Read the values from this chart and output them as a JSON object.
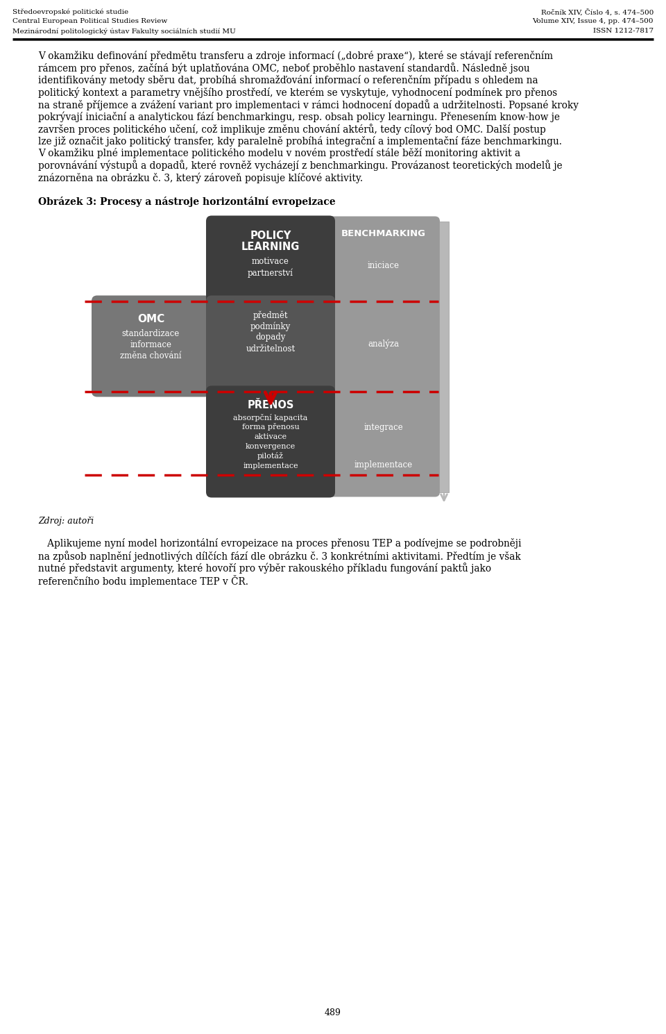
{
  "header_left": [
    "Středoevropské politické studie",
    "Central European Political Studies Review",
    "Mezinárodní politologický ústav Fakulty sociálních studií MU"
  ],
  "header_right": [
    "Ročník XIV, Číslo 4, s. 474–500",
    "Volume XIV, Issue 4, pp. 474–500",
    "ISSN 1212-7817"
  ],
  "para1_lines": [
    "V okamžiku definování předmětu transferu a zdroje informací („dobré praxe“), které se stávají referenčním",
    "rámcem pro přenos, začíná být uplatňována OMC, neboť proběhlo nastavení standardů. Následně jsou",
    "identifikovány metody sběru dat, probíhá shromažďování informací o referenčním případu s ohledem na",
    "politický kontext a parametry vnějšího prostředí, ve kterém se vyskytuje, vyhodnocení podmínek pro přenos",
    "na straně příjemce a zvážení variant pro implementaci v rámci hodnocení dopadů a udržitelnosti. Popsané kroky",
    "pokrývají iniciační a analytickou fází benchmarkingu, resp. obsah policy learningu. Přenesením know-how je",
    "završen proces politického učení, což implikuje změnu chování aktérů, tedy cílový bod OMC. Další postup",
    "lze již označit jako politický transfer, kdy paralelně probíhá integrační a implementační fáze benchmarkingu.",
    "V okamžiku plné implementace politického modelu v novém prostředí stále běží monitoring aktivit a",
    "porovnávání výstupů a dopadů, které rovněž vycházejí z benchmarkingu. Provázanost teoretických modelů je",
    "znázorněna na obrázku č. 3, který zároveň popisuje klíčové aktivity."
  ],
  "figure_caption": "Obrázek 3: Procesy a nástroje horizontální evropeizace",
  "bottom_para_lines": [
    "   Aplikujeme nyní model horizontální evropeizace na proces přenosu TEP a podívejme se podrobněji",
    "na způsob naplnění jednotlivých dílčích fází dle obrázku č. 3 konkrétními aktivitami. Předtím je však",
    "nutné představit argumenty, které hovoří pro výběr rakouského příkladu fungování paktů jako",
    "referenčního bodu implementace TEP v ČR."
  ],
  "page_number": "489",
  "color_dark": "#3d3d3d",
  "color_mid": "#555555",
  "color_light_gray": "#888888",
  "color_bench": "#999999",
  "color_omc": "#777777",
  "color_scroll": "#b8b8b8",
  "color_red": "#cc0000"
}
